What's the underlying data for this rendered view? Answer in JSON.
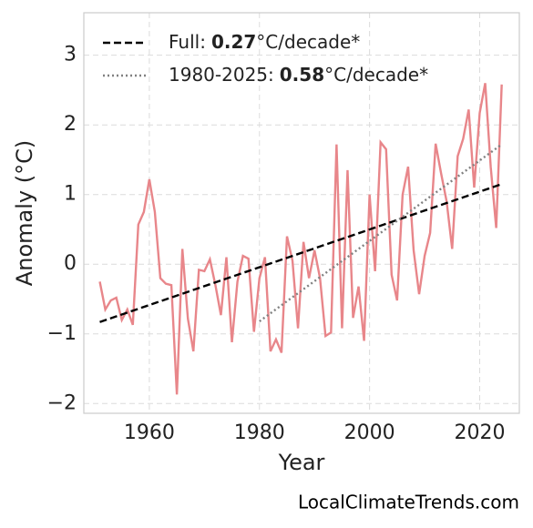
{
  "chart_data": {
    "type": "line",
    "xlabel": "Year",
    "ylabel": "Anomaly (°C)",
    "source": "LocalClimateTrends.com",
    "x": [
      1951,
      1952,
      1953,
      1954,
      1955,
      1956,
      1957,
      1958,
      1959,
      1960,
      1961,
      1962,
      1963,
      1964,
      1965,
      1966,
      1967,
      1968,
      1969,
      1970,
      1971,
      1972,
      1973,
      1974,
      1975,
      1976,
      1977,
      1978,
      1979,
      1980,
      1981,
      1982,
      1983,
      1984,
      1985,
      1986,
      1987,
      1988,
      1989,
      1990,
      1991,
      1992,
      1993,
      1994,
      1995,
      1996,
      1997,
      1998,
      1999,
      2000,
      2001,
      2002,
      2003,
      2004,
      2005,
      2006,
      2007,
      2008,
      2009,
      2010,
      2011,
      2012,
      2013,
      2014,
      2015,
      2016,
      2017,
      2018,
      2019,
      2020,
      2021,
      2022,
      2023,
      2024
    ],
    "series": [
      {
        "color": "#e8868a",
        "style": "solid",
        "values": [
          -0.25,
          -0.65,
          -0.52,
          -0.48,
          -0.8,
          -0.65,
          -0.87,
          0.57,
          0.75,
          1.22,
          0.75,
          -0.2,
          -0.28,
          -0.3,
          -1.87,
          0.22,
          -0.78,
          -1.25,
          -0.08,
          -0.1,
          0.07,
          -0.3,
          -0.73,
          0.1,
          -1.12,
          -0.25,
          0.12,
          0.08,
          -0.97,
          -0.2,
          0.1,
          -1.25,
          -1.08,
          -1.27,
          0.4,
          0.05,
          -0.92,
          0.32,
          -0.2,
          0.2,
          -0.2,
          -1.03,
          -0.98,
          1.72,
          -0.92,
          1.35,
          -0.77,
          -0.32,
          -1.1,
          1.0,
          -0.1,
          1.75,
          1.65,
          -0.15,
          -0.52,
          1.0,
          1.4,
          0.2,
          -0.43,
          0.12,
          0.45,
          1.73,
          1.3,
          0.9,
          0.22,
          1.55,
          1.8,
          2.22,
          1.1,
          2.17,
          2.6,
          1.4,
          0.52,
          2.58
        ]
      },
      {
        "name_parts": [
          "Full:",
          "0.27",
          "°C/decade*"
        ],
        "color": "#000000",
        "style": "dashed",
        "x": [
          1951,
          2024
        ],
        "values": [
          -0.83,
          1.15
        ]
      },
      {
        "name_parts": [
          "1980-2025:",
          "0.58",
          "°C/decade*"
        ],
        "color": "#808080",
        "style": "dotted",
        "x": [
          1980,
          2024
        ],
        "values": [
          -0.82,
          1.72
        ]
      }
    ],
    "xlim": [
      1948.1,
      2027.2
    ],
    "ylim": [
      -2.14,
      3.61
    ],
    "xticks": [
      1960,
      1980,
      2000,
      2020
    ],
    "yticks": [
      {
        "value": -2,
        "label": "−2"
      },
      {
        "value": -1,
        "label": "−1"
      },
      0,
      1,
      2,
      3
    ],
    "grid": true,
    "legend": "upper left"
  }
}
